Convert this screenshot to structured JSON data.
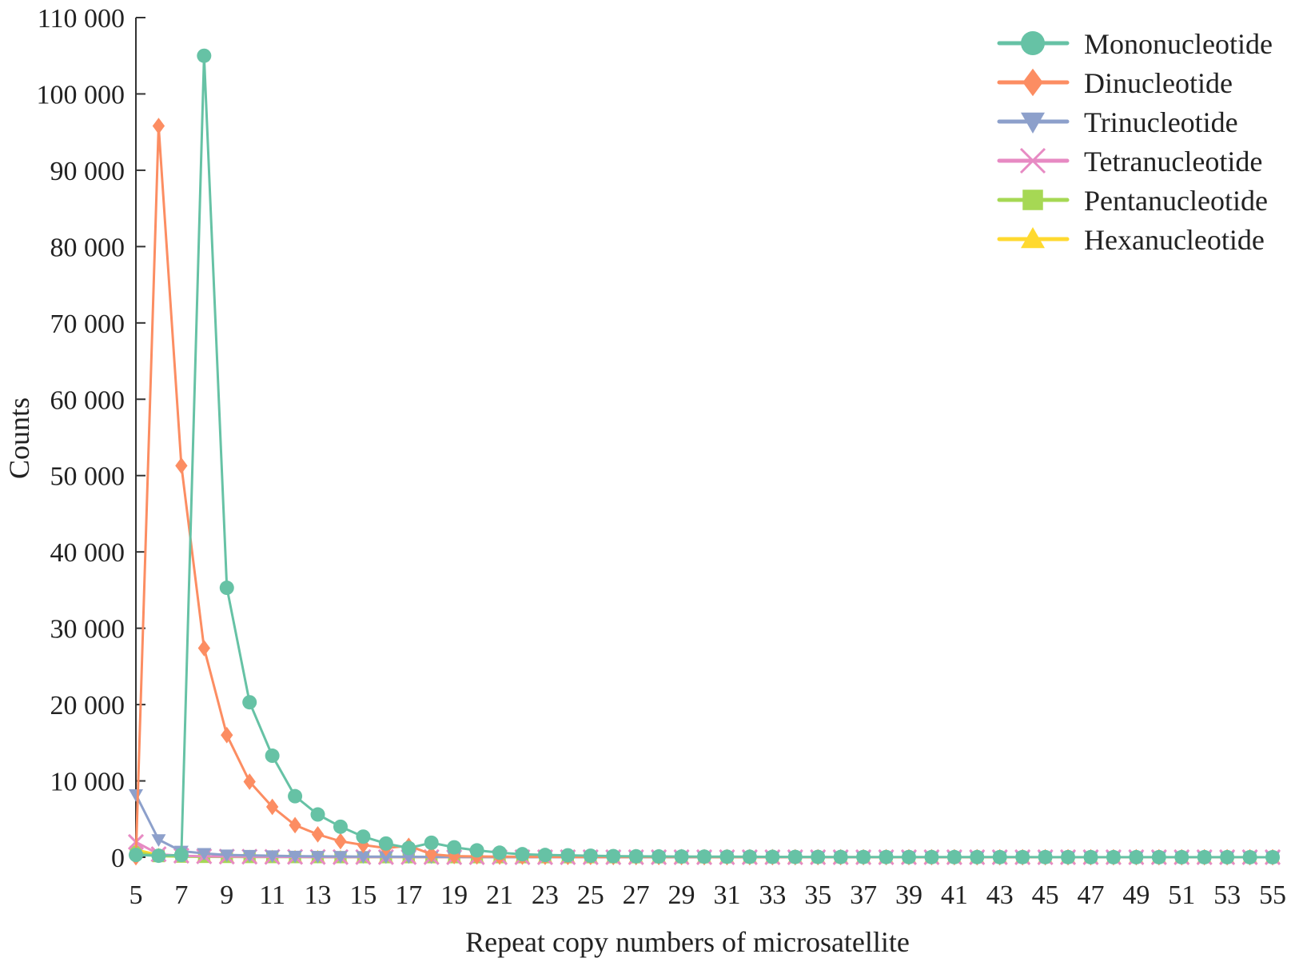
{
  "chart_data": {
    "type": "line",
    "title": "",
    "xlabel": "Repeat copy numbers of microsatellite",
    "ylabel": "Counts",
    "xlim": [
      5,
      55
    ],
    "ylim": [
      0,
      110000
    ],
    "x_ticks": [
      5,
      7,
      9,
      11,
      13,
      15,
      17,
      19,
      21,
      23,
      25,
      27,
      29,
      31,
      33,
      35,
      37,
      39,
      41,
      43,
      45,
      47,
      49,
      51,
      53,
      55
    ],
    "x_tick_labels": [
      "5",
      "7",
      "9",
      "11",
      "13",
      "15",
      "17",
      "19",
      "21",
      "23",
      "25",
      "27",
      "29",
      "31",
      "33",
      "35",
      "37",
      "39",
      "41",
      "43",
      "45",
      "47",
      "49",
      "51",
      "53",
      "55"
    ],
    "y_ticks": [
      0,
      10000,
      20000,
      30000,
      40000,
      50000,
      60000,
      70000,
      80000,
      90000,
      100000,
      110000
    ],
    "y_tick_labels": [
      "0",
      "10 000",
      "20 000",
      "30 000",
      "40 000",
      "50 000",
      "60 000",
      "70 000",
      "80 000",
      "90 000",
      "100 000",
      "110 000"
    ],
    "grid": false,
    "legend_position": "top-right",
    "x": [
      5,
      6,
      7,
      8,
      9,
      10,
      11,
      12,
      13,
      14,
      15,
      16,
      17,
      18,
      19,
      20,
      21,
      22,
      23,
      24,
      25,
      26,
      27,
      28,
      29,
      30,
      31,
      32,
      33,
      34,
      35,
      36,
      37,
      38,
      39,
      40,
      41,
      42,
      43,
      44,
      45,
      46,
      47,
      48,
      49,
      50,
      51,
      52,
      53,
      54,
      55
    ],
    "series": [
      {
        "name": "Mononucleotide",
        "color": "#66c2a5",
        "marker": "circle",
        "values": [
          300,
          200,
          300,
          105000,
          35300,
          20300,
          13300,
          8000,
          5600,
          4000,
          2700,
          1800,
          1200,
          1900,
          1300,
          900,
          600,
          400,
          300,
          250,
          200,
          150,
          120,
          100,
          90,
          80,
          70,
          60,
          50,
          45,
          40,
          35,
          30,
          28,
          26,
          24,
          22,
          20,
          18,
          16,
          15,
          14,
          13,
          12,
          11,
          10,
          9,
          8,
          7,
          6,
          5
        ]
      },
      {
        "name": "Dinucleotide",
        "color": "#fc8d62",
        "marker": "diamond",
        "values": [
          0,
          95800,
          51300,
          27400,
          16000,
          9900,
          6600,
          4200,
          3000,
          2100,
          1600,
          1200,
          1500,
          400,
          150,
          100,
          80,
          60,
          50,
          40,
          35,
          30,
          25,
          20,
          18,
          16,
          14,
          12,
          10,
          9,
          8,
          7,
          6,
          5,
          5,
          4,
          4,
          3,
          3,
          3,
          2,
          2,
          2,
          2,
          1,
          1,
          1,
          1,
          1,
          1,
          1
        ]
      },
      {
        "name": "Trinucleotide",
        "color": "#8da0cb",
        "marker": "triangle-down",
        "values": [
          8200,
          2300,
          800,
          500,
          300,
          250,
          200,
          150,
          120,
          100,
          80,
          70,
          60,
          50,
          45,
          40,
          35,
          30,
          25,
          22,
          20,
          18,
          16,
          14,
          12,
          10,
          9,
          8,
          7,
          6,
          5,
          5,
          4,
          4,
          3,
          3,
          3,
          2,
          2,
          2,
          2,
          1,
          1,
          1,
          1,
          1,
          1,
          1,
          1,
          1,
          1
        ]
      },
      {
        "name": "Tetranucleotide",
        "color": "#e78ac3",
        "marker": "x",
        "values": [
          2000,
          400,
          200,
          120,
          90,
          70,
          50,
          40,
          30,
          25,
          20,
          18,
          16,
          14,
          12,
          10,
          9,
          8,
          7,
          6,
          5,
          5,
          4,
          4,
          3,
          3,
          3,
          2,
          2,
          2,
          2,
          1,
          1,
          1,
          1,
          1,
          1,
          1,
          1,
          1,
          1,
          1,
          1,
          1,
          1,
          1,
          1,
          1,
          1,
          1,
          1
        ]
      },
      {
        "name": "Pentanucleotide",
        "color": "#a6d854",
        "marker": "square",
        "values": [
          700,
          150,
          80,
          50,
          40,
          30,
          25,
          20,
          15,
          12,
          10,
          9,
          8,
          7,
          6,
          5,
          5,
          4,
          4,
          3,
          3,
          3,
          2,
          2,
          2,
          2,
          1,
          1,
          1,
          1,
          1,
          1,
          1,
          1,
          1,
          1,
          1,
          1,
          1,
          1,
          1,
          1,
          1,
          1,
          1,
          1,
          1,
          1,
          1,
          1,
          1
        ]
      },
      {
        "name": "Hexanucleotide",
        "color": "#ffd92f",
        "marker": "triangle-up",
        "values": [
          1000,
          300,
          150,
          100,
          80,
          60,
          50,
          40,
          35,
          30,
          25,
          20,
          18,
          16,
          14,
          12,
          10,
          9,
          8,
          7,
          6,
          5,
          5,
          4,
          4,
          3,
          3,
          3,
          2,
          2,
          2,
          2,
          1,
          1,
          1,
          1,
          1,
          1,
          1,
          1,
          1,
          1,
          1,
          1,
          1,
          1,
          1,
          1,
          1,
          1,
          1
        ]
      }
    ]
  }
}
